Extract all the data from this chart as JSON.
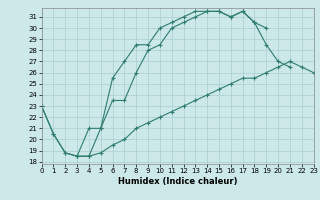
{
  "line1_x": [
    0,
    1,
    2,
    3,
    4,
    5,
    6,
    7,
    8,
    9,
    10,
    11,
    12,
    13,
    14,
    15,
    16,
    17,
    18,
    19
  ],
  "line1_y": [
    23.0,
    20.5,
    18.8,
    18.5,
    18.5,
    21.0,
    25.5,
    27.0,
    28.5,
    28.5,
    30.0,
    30.5,
    31.0,
    31.5,
    31.5,
    31.5,
    31.0,
    31.5,
    30.5,
    30.0
  ],
  "line2_x": [
    0,
    1,
    2,
    3,
    4,
    5,
    6,
    7,
    8,
    9,
    10,
    11,
    12,
    13,
    14,
    15,
    16,
    17,
    18,
    19,
    20,
    21
  ],
  "line2_y": [
    23.0,
    20.5,
    18.8,
    18.5,
    21.0,
    21.0,
    23.5,
    23.5,
    26.0,
    28.0,
    28.5,
    30.0,
    30.5,
    31.0,
    31.5,
    31.5,
    31.0,
    31.5,
    30.5,
    28.5,
    27.0,
    26.5
  ],
  "line3_x": [
    3,
    4,
    5,
    6,
    7,
    8,
    9,
    10,
    11,
    12,
    13,
    14,
    15,
    16,
    17,
    18,
    19,
    20,
    21,
    22,
    23
  ],
  "line3_y": [
    18.5,
    18.5,
    18.8,
    19.5,
    20.0,
    21.0,
    21.5,
    22.0,
    22.5,
    23.0,
    23.5,
    24.0,
    24.5,
    25.0,
    25.5,
    25.5,
    26.0,
    26.5,
    27.0,
    26.5,
    26.0
  ],
  "color": "#2e7d6e",
  "bg_color": "#cce8e8",
  "grid_color": "#aacece",
  "xlabel": "Humidex (Indice chaleur)",
  "xlim": [
    0,
    23
  ],
  "ylim": [
    17.8,
    31.8
  ],
  "yticks": [
    18,
    19,
    20,
    21,
    22,
    23,
    24,
    25,
    26,
    27,
    28,
    29,
    30,
    31
  ],
  "xticks": [
    0,
    1,
    2,
    3,
    4,
    5,
    6,
    7,
    8,
    9,
    10,
    11,
    12,
    13,
    14,
    15,
    16,
    17,
    18,
    19,
    20,
    21,
    22,
    23
  ],
  "marker": "+",
  "markersize": 3.5,
  "linewidth": 0.8,
  "tick_fontsize": 5.0,
  "xlabel_fontsize": 6.0
}
